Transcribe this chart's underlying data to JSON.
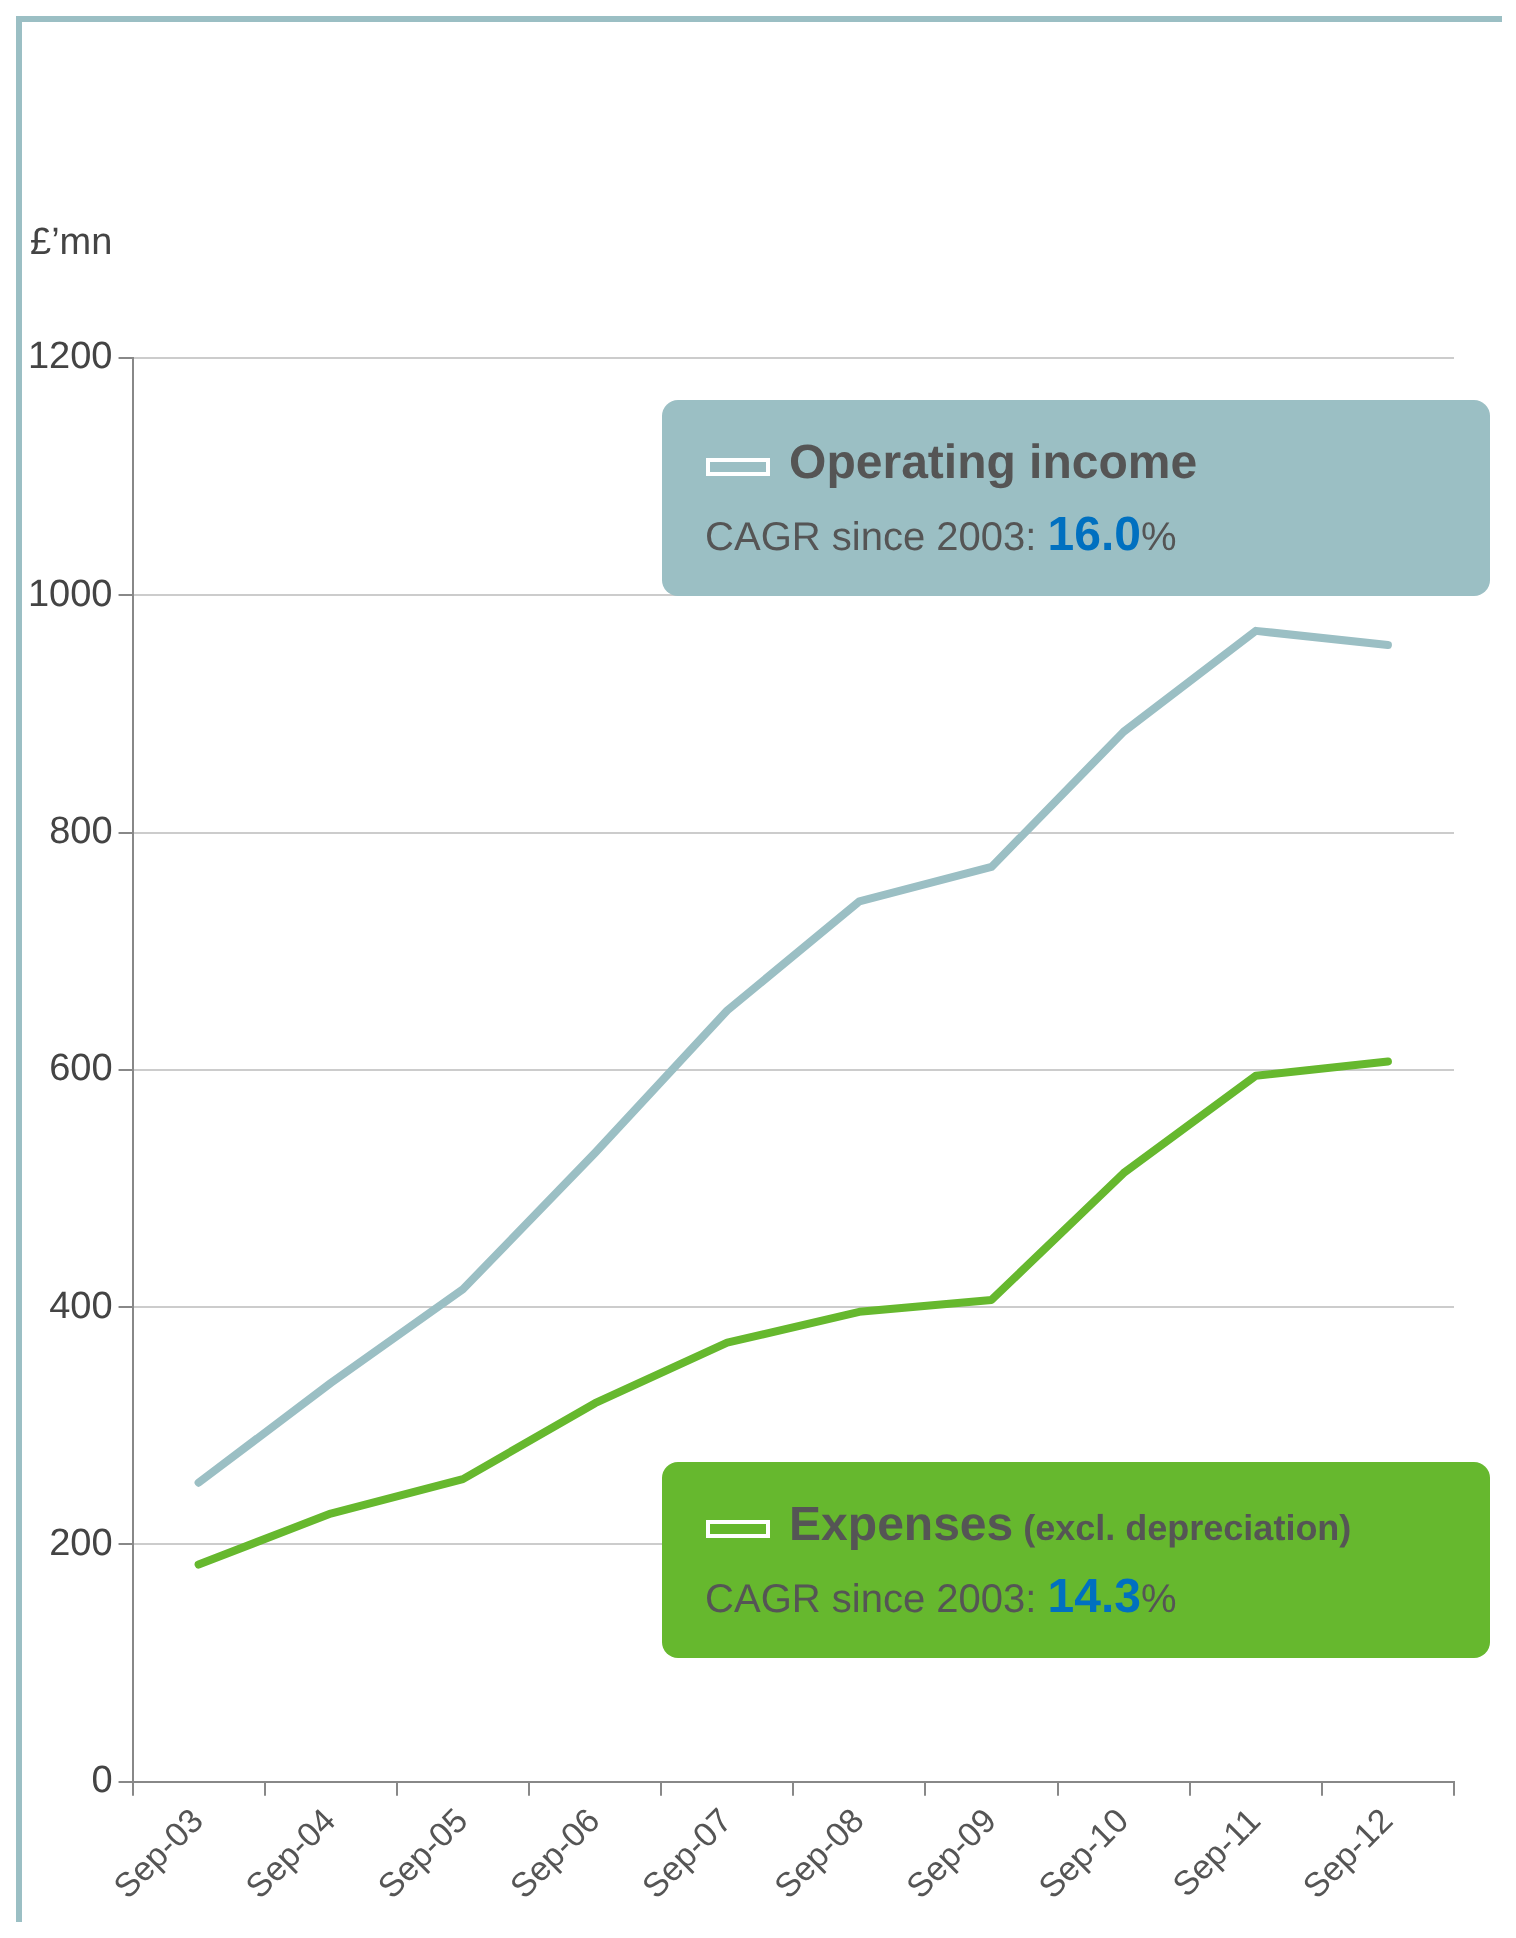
{
  "chart_data": {
    "type": "line",
    "ylabel": "£’mn",
    "categories": [
      "Sep-03",
      "Sep-04",
      "Sep-05",
      "Sep-06",
      "Sep-07",
      "Sep-08",
      "Sep-09",
      "Sep-10",
      "Sep-11",
      "Sep-12"
    ],
    "series": [
      {
        "name": "Operating income",
        "color": "#9bbfc4",
        "values": [
          252,
          336,
          415,
          530,
          650,
          742,
          771,
          885,
          970,
          958
        ]
      },
      {
        "name": "Expenses (excl. depreciation)",
        "color": "#66b82e",
        "values": [
          183,
          226,
          255,
          319,
          370,
          396,
          406,
          513,
          595,
          607
        ]
      }
    ],
    "annotations": [
      "CAGR since 2003: 16.0%",
      "CAGR since 2003: 14.3%"
    ],
    "ylim": [
      0,
      1200
    ],
    "yticks": [
      0,
      200,
      400,
      600,
      800,
      1000,
      1200
    ],
    "grid": "y",
    "legend": "right",
    "marker": "none",
    "line_style": "solid"
  }
}
